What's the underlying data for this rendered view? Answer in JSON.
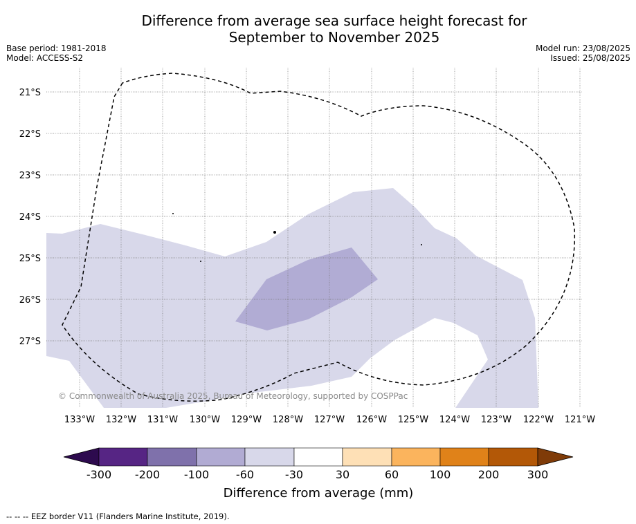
{
  "title_line1": "Difference from average sea surface height forecast for",
  "title_line2": "September to November 2025",
  "meta_left": {
    "base_period": "Base period: 1981-2018",
    "model": "Model: ACCESS-S2"
  },
  "meta_right": {
    "model_run": "Model run: 23/08/2025",
    "issued": "Issued: 25/08/2025"
  },
  "map": {
    "lon_labels": [
      "133°W",
      "132°W",
      "131°W",
      "130°W",
      "129°W",
      "128°W",
      "127°W",
      "126°W",
      "125°W",
      "124°W",
      "123°W",
      "122°W",
      "121°W"
    ],
    "lat_labels": [
      "21°S",
      "22°S",
      "23°S",
      "24°S",
      "25°S",
      "26°S",
      "27°S"
    ],
    "copyright": "© Commonwealth of Australia 2025, Bureau of Meteorology, supported by COSPPac",
    "fill_colors": {
      "light": "#d8d8ea",
      "medium": "#b1acd4"
    },
    "eez_line_color": "#000000"
  },
  "colorbar": {
    "labels": [
      "-300",
      "-200",
      "-100",
      "-60",
      "-30",
      "30",
      "60",
      "100",
      "200",
      "300"
    ],
    "colors": [
      "#2d0a4e",
      "#562584",
      "#7f71ab",
      "#b1abd3",
      "#d8d8ea",
      "#ffffff",
      "#fee0b6",
      "#fbb45d",
      "#e08219",
      "#b35807",
      "#7f3b08"
    ],
    "title": "Difference from average (mm)"
  },
  "footer": "--  --  -- EEZ border V11 (Flanders Marine Institute, 2019)."
}
